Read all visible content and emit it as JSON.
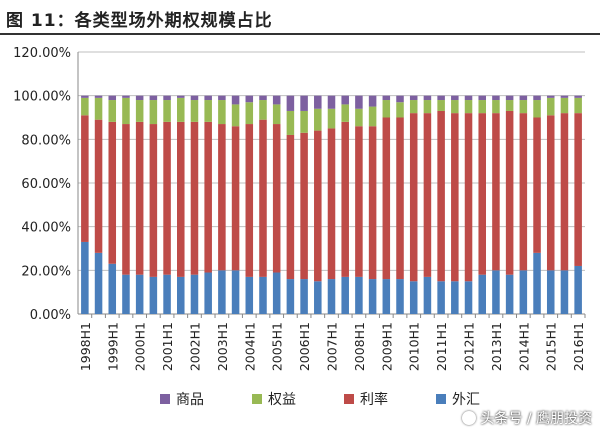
{
  "header": {
    "title": "图 11：各类型场外期权规模占比"
  },
  "watermark": {
    "text": "头条号 / 鹰朋投资"
  },
  "chart_data": {
    "type": "bar",
    "stacked": true,
    "title": "",
    "xlabel": "",
    "ylabel": "",
    "ylim": [
      0,
      1.2
    ],
    "yticks": [
      "0.00%",
      "20.00%",
      "40.00%",
      "60.00%",
      "80.00%",
      "100.00%",
      "120.00%"
    ],
    "grid": true,
    "legend": "bottom",
    "categories": [
      "1998H1",
      "1998H2",
      "1999H1",
      "1999H2",
      "2000H1",
      "2000H2",
      "2001H1",
      "2001H2",
      "2002H1",
      "2002H2",
      "2003H1",
      "2003H2",
      "2004H1",
      "2004H2",
      "2005H1",
      "2005H2",
      "2006H1",
      "2006H2",
      "2007H1",
      "2007H2",
      "2008H1",
      "2008H2",
      "2009H1",
      "2009H2",
      "2010H1",
      "2010H2",
      "2011H1",
      "2011H2",
      "2012H1",
      "2012H2",
      "2013H1",
      "2013H2",
      "2014H1",
      "2014H2",
      "2015H1",
      "2015H2",
      "2016H1"
    ],
    "series": [
      {
        "name": "外汇",
        "color": "#4a7ebb",
        "values": [
          0.33,
          0.28,
          0.23,
          0.18,
          0.18,
          0.17,
          0.18,
          0.17,
          0.18,
          0.19,
          0.2,
          0.2,
          0.17,
          0.17,
          0.19,
          0.16,
          0.16,
          0.15,
          0.16,
          0.17,
          0.17,
          0.16,
          0.16,
          0.16,
          0.15,
          0.17,
          0.15,
          0.15,
          0.15,
          0.18,
          0.2,
          0.18,
          0.2,
          0.28,
          0.2,
          0.2,
          0.22
        ]
      },
      {
        "name": "利率",
        "color": "#be4b48",
        "values": [
          0.58,
          0.61,
          0.65,
          0.69,
          0.7,
          0.7,
          0.7,
          0.71,
          0.7,
          0.69,
          0.67,
          0.66,
          0.7,
          0.72,
          0.68,
          0.66,
          0.67,
          0.69,
          0.69,
          0.71,
          0.69,
          0.7,
          0.74,
          0.74,
          0.77,
          0.75,
          0.78,
          0.77,
          0.77,
          0.74,
          0.72,
          0.75,
          0.72,
          0.62,
          0.71,
          0.72,
          0.7
        ]
      },
      {
        "name": "权益",
        "color": "#98b954",
        "values": [
          0.08,
          0.1,
          0.1,
          0.12,
          0.1,
          0.11,
          0.1,
          0.11,
          0.1,
          0.1,
          0.11,
          0.1,
          0.1,
          0.09,
          0.09,
          0.11,
          0.1,
          0.1,
          0.09,
          0.08,
          0.08,
          0.09,
          0.08,
          0.07,
          0.06,
          0.06,
          0.05,
          0.06,
          0.06,
          0.06,
          0.06,
          0.05,
          0.06,
          0.08,
          0.08,
          0.07,
          0.07
        ]
      },
      {
        "name": "商品",
        "color": "#7d60a0",
        "values": [
          0.01,
          0.01,
          0.02,
          0.01,
          0.02,
          0.02,
          0.02,
          0.01,
          0.02,
          0.02,
          0.02,
          0.04,
          0.03,
          0.02,
          0.04,
          0.07,
          0.07,
          0.06,
          0.06,
          0.04,
          0.06,
          0.05,
          0.02,
          0.03,
          0.02,
          0.02,
          0.02,
          0.02,
          0.02,
          0.02,
          0.02,
          0.02,
          0.02,
          0.02,
          0.01,
          0.01,
          0.01
        ]
      }
    ],
    "legend_order": [
      "商品",
      "权益",
      "利率",
      "外汇"
    ]
  }
}
